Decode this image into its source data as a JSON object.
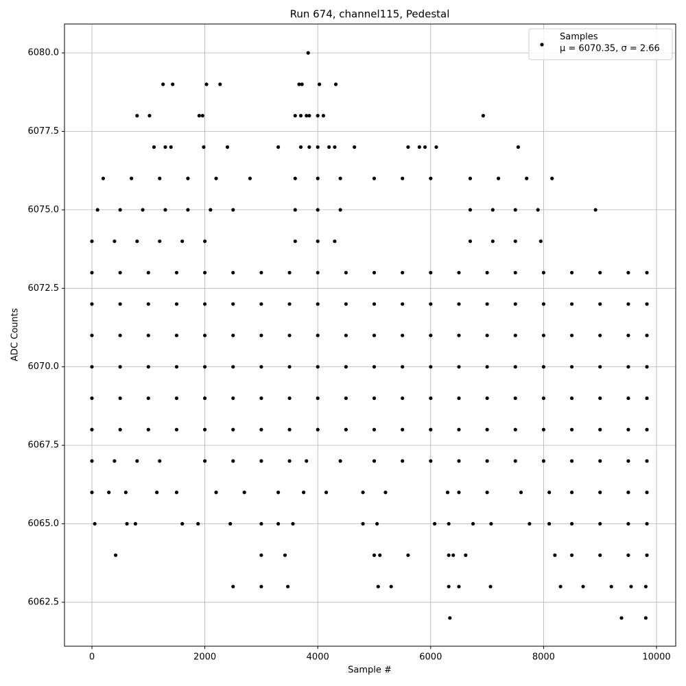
{
  "chart_data": {
    "type": "scatter",
    "title": "Run 674, channel115, Pedestal",
    "x_label": "Sample #",
    "y_label": "ADC Counts",
    "xlim": [
      -486,
      10340
    ],
    "ylim": [
      6061.1,
      6080.92
    ],
    "xticks": [
      0,
      2000,
      4000,
      6000,
      8000,
      10000
    ],
    "yticks": [
      6062.5,
      {
        "value": 6065,
        "label": "6065.0"
      },
      6067.5,
      {
        "value": 6070,
        "label": "6070.0"
      },
      6072.5,
      {
        "value": 6075,
        "label": "6075.0"
      },
      6077.5,
      {
        "value": 6080,
        "label": "6080.0"
      }
    ],
    "grid": true,
    "legend": "upper right",
    "series": [
      {
        "name": "Samples",
        "stats": "μ = 6070.35, σ = 2.66",
        "color": "#000000",
        "x": [
          0,
          500,
          1000,
          1500,
          2000,
          2500,
          3000,
          3500,
          4000,
          4500,
          5000,
          5500,
          6000,
          6500,
          7000,
          7500,
          8000,
          8500,
          9000,
          9500,
          9830,
          0,
          500,
          1000,
          1500,
          2000,
          2500,
          3000,
          3500,
          4000,
          4500,
          5000,
          5500,
          6000,
          6500,
          7000,
          7500,
          8000,
          8500,
          9000,
          9500,
          9830,
          0,
          500,
          1000,
          1500,
          2000,
          2500,
          3000,
          3500,
          4000,
          4500,
          5000,
          5500,
          6000,
          6500,
          7000,
          7500,
          8000,
          8500,
          9000,
          9500,
          9830,
          0,
          500,
          1000,
          1500,
          2000,
          2500,
          3000,
          3500,
          4000,
          4500,
          5000,
          5500,
          6000,
          6500,
          7000,
          7500,
          8000,
          8500,
          9000,
          9500,
          9830,
          0,
          500,
          1000,
          1500,
          2000,
          2500,
          3000,
          3500,
          4000,
          4500,
          5000,
          5500,
          6000,
          6500,
          7000,
          7500,
          8000,
          8500,
          9000,
          9500,
          9830,
          0,
          500,
          1000,
          1500,
          2000,
          2500,
          3000,
          3500,
          4000,
          4500,
          5000,
          5500,
          6000,
          6500,
          7000,
          7500,
          8000,
          8500,
          9000,
          9500,
          9830,
          0,
          400,
          800,
          1200,
          2000,
          2500,
          3000,
          3500,
          3800,
          4400,
          5000,
          5500,
          6000,
          6500,
          7000,
          7500,
          8000,
          8500,
          9000,
          9500,
          9830,
          100,
          500,
          900,
          1300,
          1700,
          2100,
          2500,
          3600,
          4000,
          4400,
          6700,
          7100,
          7500,
          7900,
          8920,
          0,
          400,
          800,
          1200,
          1600,
          2000,
          3600,
          4000,
          4300,
          6700,
          7100,
          7500,
          7950,
          200,
          700,
          1200,
          1700,
          2200,
          2800,
          3600,
          4000,
          4400,
          5000,
          5500,
          6000,
          6700,
          7200,
          7700,
          8150,
          0,
          300,
          600,
          1150,
          1500,
          2200,
          2700,
          3300,
          3750,
          4150,
          4800,
          5200,
          6300,
          6500,
          7000,
          7600,
          8100,
          8500,
          9000,
          9500,
          9830,
          50,
          620,
          770,
          1600,
          1880,
          2450,
          3000,
          3300,
          3560,
          4800,
          5050,
          6070,
          6320,
          6750,
          7070,
          7750,
          8100,
          8500,
          9000,
          9500,
          9830,
          420,
          3000,
          3420,
          5000,
          5100,
          5600,
          6320,
          6400,
          6620,
          8200,
          8500,
          9000,
          9500,
          9830,
          2500,
          3000,
          3470,
          5070,
          5300,
          6320,
          6500,
          7060,
          8300,
          8700,
          9200,
          9550,
          9810,
          6340,
          9380,
          9810,
          1100,
          1300,
          1400,
          1980,
          2400,
          3300,
          3700,
          3850,
          4000,
          4200,
          4300,
          4650,
          5600,
          5800,
          5900,
          6100,
          7550,
          800,
          1020,
          1900,
          1960,
          3600,
          3700,
          3800,
          3850,
          4000,
          4100,
          6930,
          1260,
          1430,
          2030,
          2270,
          3670,
          3720,
          4030,
          4320,
          3830
        ],
        "values": [
          6073,
          6073,
          6073,
          6073,
          6073,
          6073,
          6073,
          6073,
          6073,
          6073,
          6073,
          6073,
          6073,
          6073,
          6073,
          6073,
          6073,
          6073,
          6073,
          6073,
          6073,
          6072,
          6072,
          6072,
          6072,
          6072,
          6072,
          6072,
          6072,
          6072,
          6072,
          6072,
          6072,
          6072,
          6072,
          6072,
          6072,
          6072,
          6072,
          6072,
          6072,
          6072,
          6071,
          6071,
          6071,
          6071,
          6071,
          6071,
          6071,
          6071,
          6071,
          6071,
          6071,
          6071,
          6071,
          6071,
          6071,
          6071,
          6071,
          6071,
          6071,
          6071,
          6071,
          6070,
          6070,
          6070,
          6070,
          6070,
          6070,
          6070,
          6070,
          6070,
          6070,
          6070,
          6070,
          6070,
          6070,
          6070,
          6070,
          6070,
          6070,
          6070,
          6070,
          6070,
          6069,
          6069,
          6069,
          6069,
          6069,
          6069,
          6069,
          6069,
          6069,
          6069,
          6069,
          6069,
          6069,
          6069,
          6069,
          6069,
          6069,
          6069,
          6069,
          6069,
          6069,
          6068,
          6068,
          6068,
          6068,
          6068,
          6068,
          6068,
          6068,
          6068,
          6068,
          6068,
          6068,
          6068,
          6068,
          6068,
          6068,
          6068,
          6068,
          6068,
          6068,
          6068,
          6067,
          6067,
          6067,
          6067,
          6067,
          6067,
          6067,
          6067,
          6067,
          6067,
          6067,
          6067,
          6067,
          6067,
          6067,
          6067,
          6067,
          6067,
          6067,
          6067,
          6067,
          6075,
          6075,
          6075,
          6075,
          6075,
          6075,
          6075,
          6075,
          6075,
          6075,
          6075,
          6075,
          6075,
          6075,
          6075,
          6074,
          6074,
          6074,
          6074,
          6074,
          6074,
          6074,
          6074,
          6074,
          6074,
          6074,
          6074,
          6074,
          6076,
          6076,
          6076,
          6076,
          6076,
          6076,
          6076,
          6076,
          6076,
          6076,
          6076,
          6076,
          6076,
          6076,
          6076,
          6076,
          6066,
          6066,
          6066,
          6066,
          6066,
          6066,
          6066,
          6066,
          6066,
          6066,
          6066,
          6066,
          6066,
          6066,
          6066,
          6066,
          6066,
          6066,
          6066,
          6066,
          6066,
          6065,
          6065,
          6065,
          6065,
          6065,
          6065,
          6065,
          6065,
          6065,
          6065,
          6065,
          6065,
          6065,
          6065,
          6065,
          6065,
          6065,
          6065,
          6065,
          6065,
          6065,
          6064,
          6064,
          6064,
          6064,
          6064,
          6064,
          6064,
          6064,
          6064,
          6064,
          6064,
          6064,
          6064,
          6064,
          6063,
          6063,
          6063,
          6063,
          6063,
          6063,
          6063,
          6063,
          6063,
          6063,
          6063,
          6063,
          6063,
          6062,
          6062,
          6062,
          6077,
          6077,
          6077,
          6077,
          6077,
          6077,
          6077,
          6077,
          6077,
          6077,
          6077,
          6077,
          6077,
          6077,
          6077,
          6077,
          6077,
          6078,
          6078,
          6078,
          6078,
          6078,
          6078,
          6078,
          6078,
          6078,
          6078,
          6078,
          6079,
          6079,
          6079,
          6079,
          6079,
          6079,
          6079,
          6079,
          6080
        ]
      }
    ]
  }
}
